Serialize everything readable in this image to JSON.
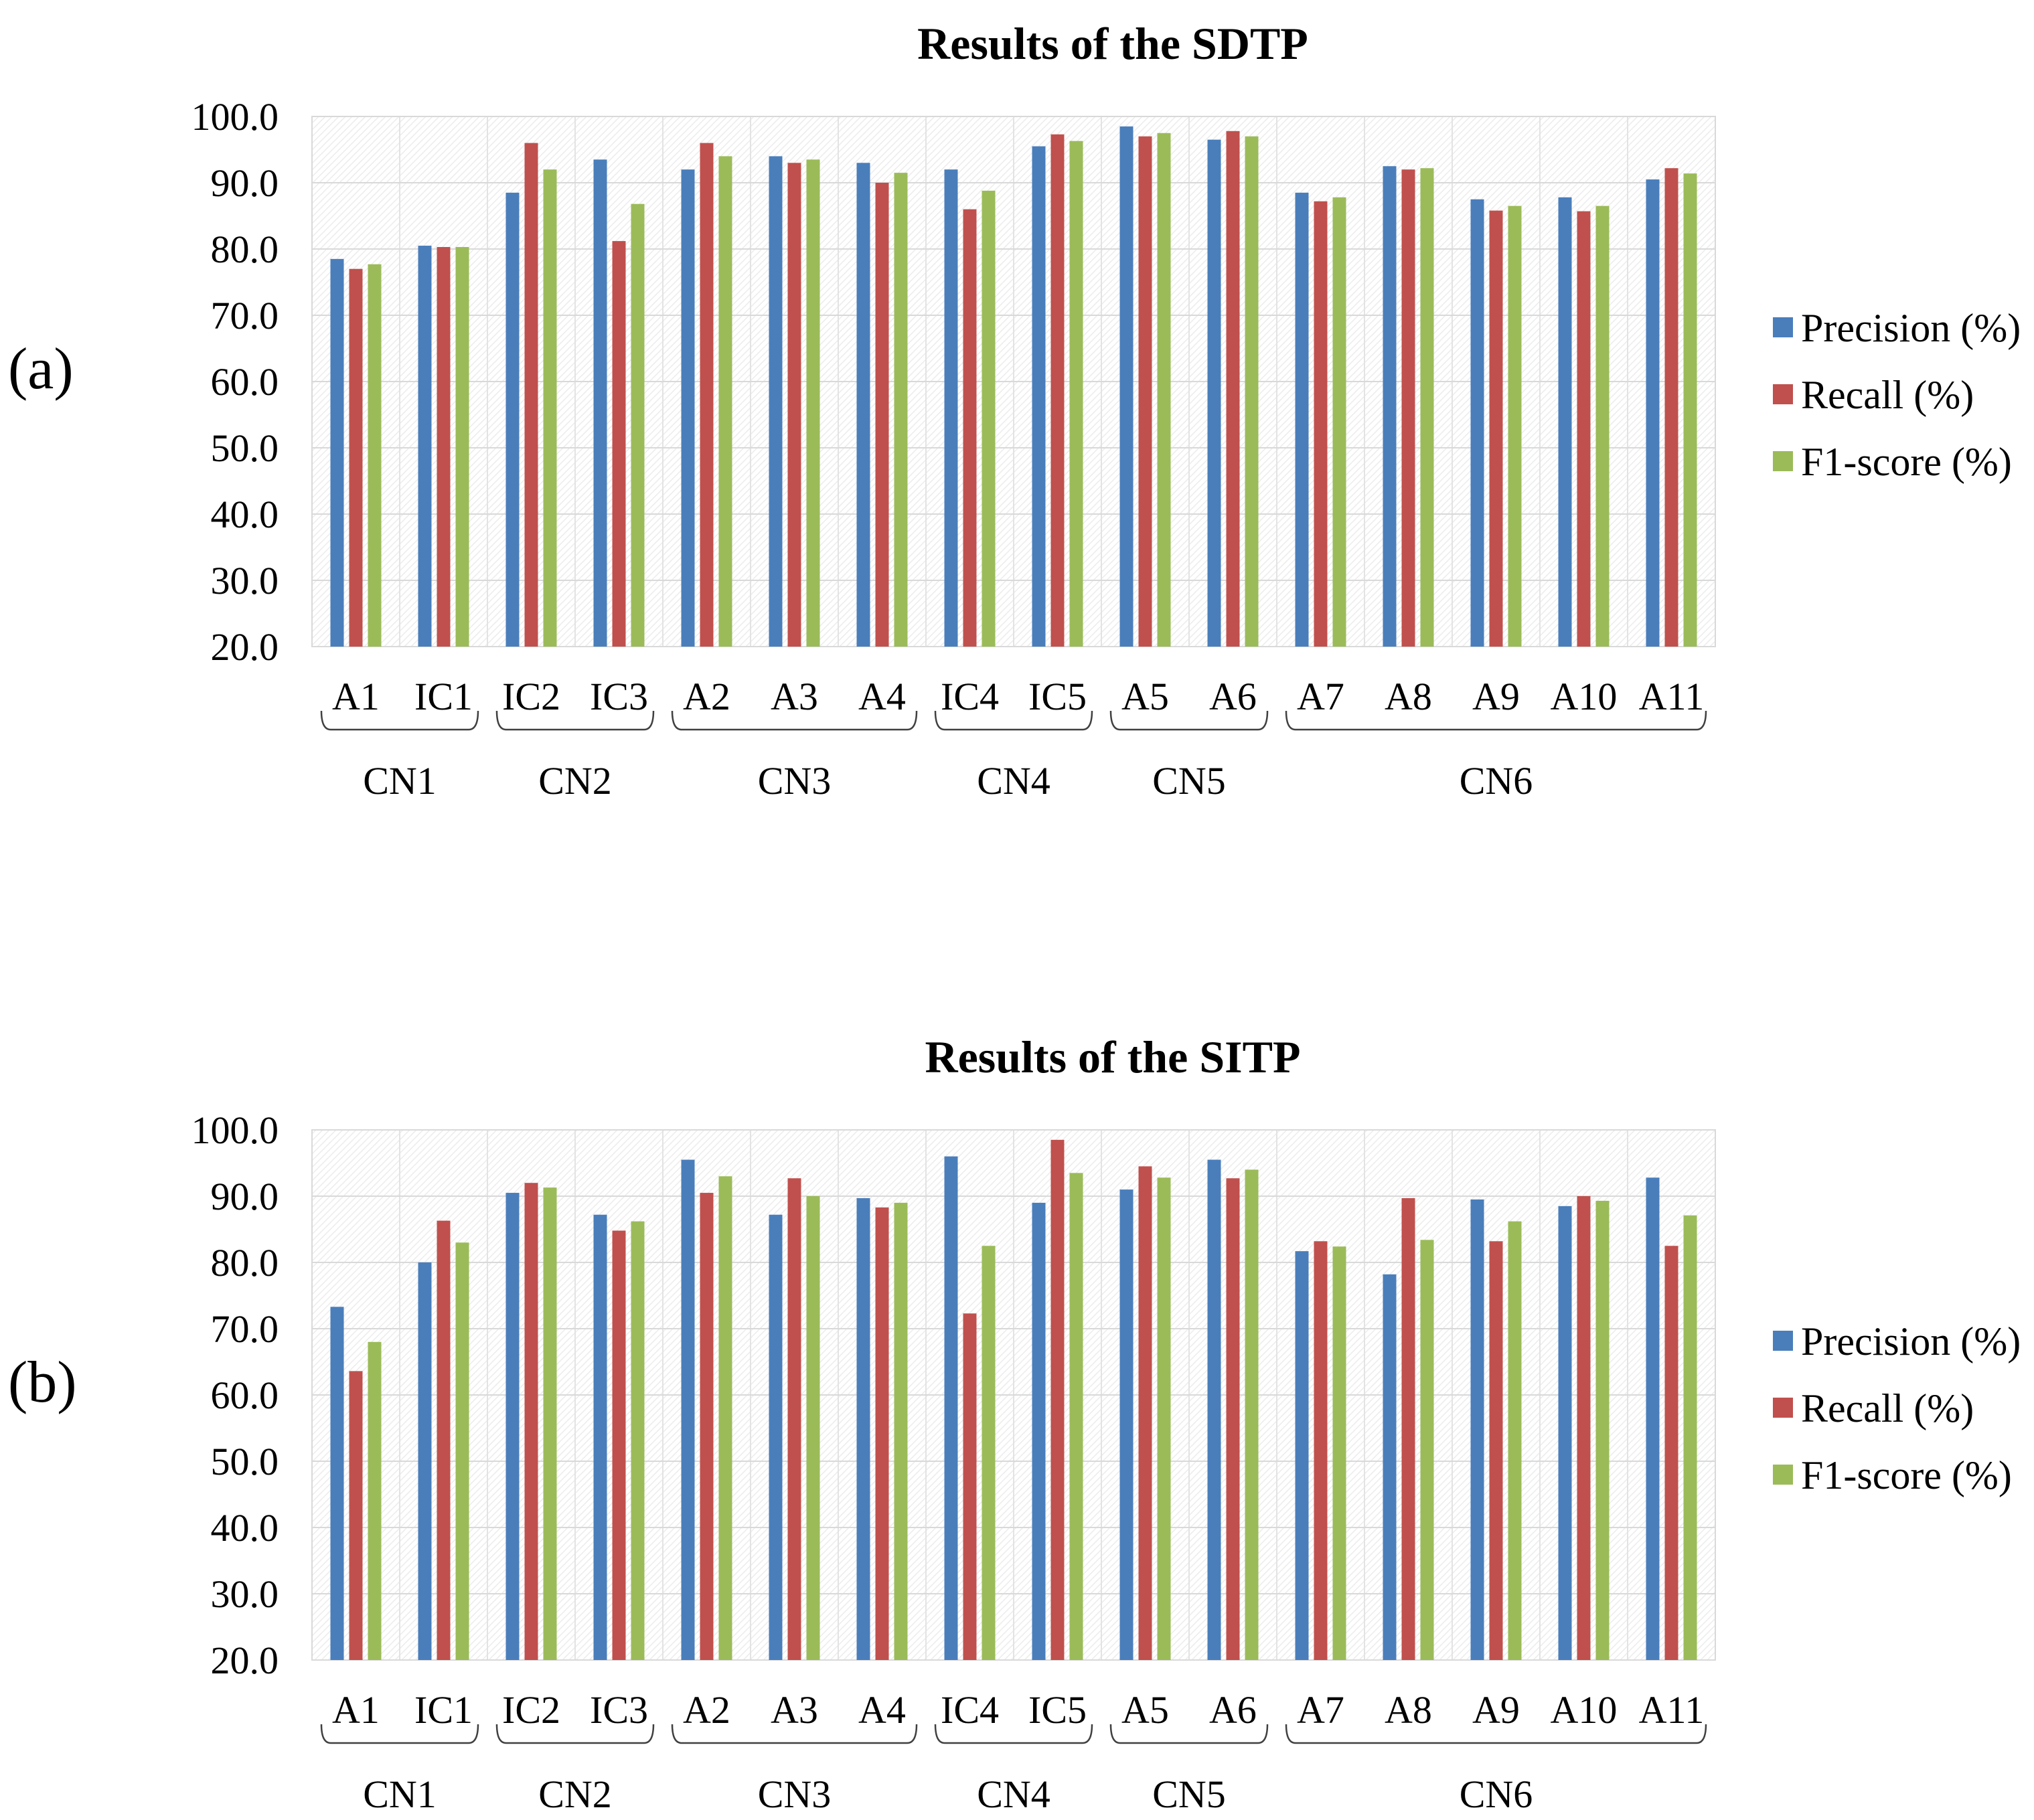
{
  "colors": {
    "precision": "#4a7ebb",
    "recall": "#c0504d",
    "f1": "#9bbb59"
  },
  "chart_data": [
    {
      "type": "bar",
      "panel_label": "(a)",
      "title": "Results of the SDTP",
      "categories": [
        "A1",
        "IC1",
        "IC2",
        "IC3",
        "A2",
        "A3",
        "A4",
        "IC4",
        "IC5",
        "A5",
        "A6",
        "A7",
        "A8",
        "A9",
        "A10",
        "A11"
      ],
      "groups": [
        {
          "name": "CN1",
          "categories": [
            "A1",
            "IC1"
          ]
        },
        {
          "name": "CN2",
          "categories": [
            "IC2",
            "IC3"
          ]
        },
        {
          "name": "CN3",
          "categories": [
            "A2",
            "A3",
            "A4"
          ]
        },
        {
          "name": "CN4",
          "categories": [
            "IC4",
            "IC5"
          ]
        },
        {
          "name": "CN5",
          "categories": [
            "A5",
            "A6"
          ]
        },
        {
          "name": "CN6",
          "categories": [
            "A7",
            "A8",
            "A9",
            "A10",
            "A11"
          ]
        }
      ],
      "series": [
        {
          "name": "Precision (%)",
          "color_key": "precision",
          "values": [
            78.5,
            80.5,
            88.5,
            93.5,
            92.0,
            94.0,
            93.0,
            92.0,
            95.5,
            98.5,
            96.5,
            88.5,
            92.5,
            87.5,
            87.8,
            90.5
          ]
        },
        {
          "name": "Recall (%)",
          "color_key": "recall",
          "values": [
            77.0,
            80.3,
            96.0,
            81.2,
            96.0,
            93.0,
            90.0,
            86.0,
            97.3,
            97.0,
            97.8,
            87.2,
            92.0,
            85.8,
            85.7,
            92.2
          ]
        },
        {
          "name": "F1-score (%)",
          "color_key": "f1",
          "values": [
            77.7,
            80.3,
            92.0,
            86.8,
            94.0,
            93.5,
            91.5,
            88.8,
            96.3,
            97.5,
            97.0,
            87.8,
            92.2,
            86.5,
            86.5,
            91.4
          ]
        }
      ],
      "ylim": [
        20.0,
        100.0
      ],
      "yticks": [
        "20.0",
        "30.0",
        "40.0",
        "50.0",
        "60.0",
        "70.0",
        "80.0",
        "90.0",
        "100.0"
      ],
      "xlabel": "",
      "ylabel": "",
      "legend_position": "right"
    },
    {
      "type": "bar",
      "panel_label": "(b)",
      "title": "Results of the SITP",
      "categories": [
        "A1",
        "IC1",
        "IC2",
        "IC3",
        "A2",
        "A3",
        "A4",
        "IC4",
        "IC5",
        "A5",
        "A6",
        "A7",
        "A8",
        "A9",
        "A10",
        "A11"
      ],
      "groups": [
        {
          "name": "CN1",
          "categories": [
            "A1",
            "IC1"
          ]
        },
        {
          "name": "CN2",
          "categories": [
            "IC2",
            "IC3"
          ]
        },
        {
          "name": "CN3",
          "categories": [
            "A2",
            "A3",
            "A4"
          ]
        },
        {
          "name": "CN4",
          "categories": [
            "IC4",
            "IC5"
          ]
        },
        {
          "name": "CN5",
          "categories": [
            "A5",
            "A6"
          ]
        },
        {
          "name": "CN6",
          "categories": [
            "A7",
            "A8",
            "A9",
            "A10",
            "A11"
          ]
        }
      ],
      "series": [
        {
          "name": "Precision (%)",
          "color_key": "precision",
          "values": [
            73.3,
            80.0,
            90.5,
            87.2,
            95.5,
            87.2,
            89.7,
            96.0,
            89.0,
            91.0,
            95.5,
            81.7,
            78.2,
            89.5,
            88.5,
            92.8
          ]
        },
        {
          "name": "Recall (%)",
          "color_key": "recall",
          "values": [
            63.6,
            86.3,
            92.0,
            84.8,
            90.5,
            92.7,
            88.3,
            72.3,
            98.5,
            94.5,
            92.7,
            83.2,
            89.7,
            83.2,
            90.0,
            82.5
          ]
        },
        {
          "name": "F1-score (%)",
          "color_key": "f1",
          "values": [
            68.0,
            83.0,
            91.3,
            86.2,
            93.0,
            90.0,
            89.0,
            82.5,
            93.5,
            92.8,
            94.0,
            82.4,
            83.4,
            86.2,
            89.3,
            87.1
          ]
        }
      ],
      "ylim": [
        20.0,
        100.0
      ],
      "yticks": [
        "20.0",
        "30.0",
        "40.0",
        "50.0",
        "60.0",
        "70.0",
        "80.0",
        "90.0",
        "100.0"
      ],
      "xlabel": "",
      "ylabel": "",
      "legend_position": "right"
    }
  ]
}
